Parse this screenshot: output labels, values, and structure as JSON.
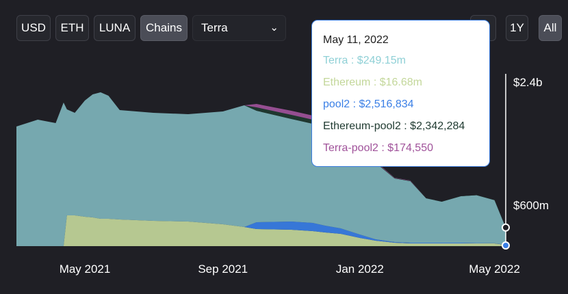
{
  "toolbar": {
    "currency_buttons": [
      "USD",
      "ETH",
      "LUNA",
      "Chains"
    ],
    "active_button": "Chains",
    "chain_select": "Terra",
    "range_buttons": [
      "1Y",
      "All"
    ],
    "active_range": "All"
  },
  "tooltip": {
    "date": "May 11, 2022",
    "rows": [
      {
        "label": "Terra : $249.15m",
        "color": "#8fd0d6"
      },
      {
        "label": "Ethereum : $16.68m",
        "color": "#c3d79a"
      },
      {
        "label": "pool2 : $2,516,834",
        "color": "#3a7fe6"
      },
      {
        "label": "Ethereum-pool2 : $2,342,284",
        "color": "#1f3a30"
      },
      {
        "label": "Terra-pool2 : $174,550",
        "color": "#a0529a"
      }
    ]
  },
  "chart_data": {
    "type": "area",
    "stacked": true,
    "x_tick_labels": [
      "May 2021",
      "Sep 2021",
      "Jan 2022",
      "May 2022"
    ],
    "y_tick_labels": [
      "$2.4b",
      "$600m"
    ],
    "y_unit": "USD (billions)",
    "ylim": [
      0,
      2.4
    ],
    "x": [
      "2021-03-01",
      "2021-03-20",
      "2021-04-05",
      "2021-04-12",
      "2021-04-15",
      "2021-04-22",
      "2021-05-01",
      "2021-05-08",
      "2021-05-15",
      "2021-05-22",
      "2021-06-01",
      "2021-07-01",
      "2021-08-01",
      "2021-09-01",
      "2021-09-20",
      "2021-10-01",
      "2021-11-01",
      "2021-11-20",
      "2021-12-01",
      "2021-12-15",
      "2022-01-01",
      "2022-01-15",
      "2022-02-01",
      "2022-02-15",
      "2022-03-01",
      "2022-03-15",
      "2022-04-01",
      "2022-04-15",
      "2022-05-01",
      "2022-05-11"
    ],
    "series": [
      {
        "name": "Ethereum",
        "color": "#c3d79a",
        "values": [
          0,
          0,
          0,
          0,
          0.45,
          0.45,
          0.43,
          0.42,
          0.4,
          0.4,
          0.39,
          0.37,
          0.36,
          0.32,
          0.28,
          0.25,
          0.24,
          0.22,
          0.2,
          0.18,
          0.12,
          0.08,
          0.05,
          0.04,
          0.04,
          0.04,
          0.04,
          0.04,
          0.04,
          0.017
        ]
      },
      {
        "name": "pool2",
        "color": "#3a7fe6",
        "values": [
          0,
          0,
          0,
          0,
          0,
          0,
          0,
          0,
          0,
          0,
          0,
          0,
          0,
          0,
          0,
          0.1,
          0.12,
          0.12,
          0.1,
          0.08,
          0.05,
          0.02,
          0.01,
          0.01,
          0.01,
          0.01,
          0.01,
          0.005,
          0.003,
          0.003
        ]
      },
      {
        "name": "Terra",
        "color": "#8fd0d6",
        "values": [
          1.75,
          1.85,
          1.8,
          2.1,
          1.55,
          1.5,
          1.7,
          1.8,
          1.85,
          1.8,
          1.6,
          1.58,
          1.57,
          1.65,
          1.78,
          1.63,
          1.5,
          1.45,
          1.32,
          1.22,
          1.24,
          1.12,
          0.93,
          0.9,
          0.65,
          0.6,
          0.68,
          0.7,
          0.63,
          0.25
        ]
      },
      {
        "name": "Ethereum-pool2",
        "color": "#1f3a30",
        "values": [
          0,
          0,
          0,
          0,
          0,
          0,
          0,
          0,
          0,
          0,
          0,
          0,
          0,
          0,
          0,
          0.05,
          0.06,
          0.06,
          0.05,
          0.03,
          0.02,
          0.01,
          0.005,
          0.005,
          0.003,
          0.003,
          0.003,
          0.003,
          0.003,
          0.002
        ]
      },
      {
        "name": "Terra-pool2",
        "color": "#a0529a",
        "values": [
          0,
          0,
          0,
          0,
          0,
          0,
          0,
          0,
          0,
          0,
          0,
          0,
          0,
          0,
          0,
          0.05,
          0.06,
          0.06,
          0.05,
          0.03,
          0.02,
          0.01,
          0.005,
          0.005,
          0,
          0,
          0,
          0,
          0,
          0
        ]
      }
    ]
  }
}
